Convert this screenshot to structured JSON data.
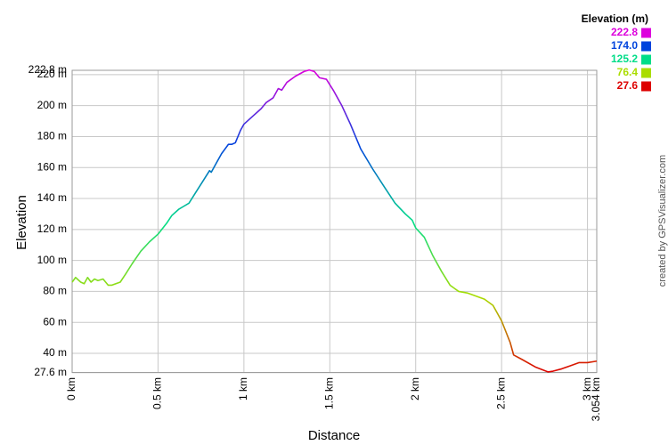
{
  "chart_data": {
    "type": "line",
    "x_label": "Distance",
    "y_label": "Elevation",
    "credit": "created by GPSVisualizer.com",
    "x": [
      0,
      0.02,
      0.05,
      0.07,
      0.09,
      0.11,
      0.13,
      0.15,
      0.18,
      0.21,
      0.23,
      0.28,
      0.31,
      0.35,
      0.4,
      0.45,
      0.5,
      0.55,
      0.58,
      0.62,
      0.65,
      0.68,
      0.72,
      0.76,
      0.8,
      0.81,
      0.84,
      0.87,
      0.91,
      0.93,
      0.95,
      0.98,
      1.0,
      1.05,
      1.1,
      1.13,
      1.17,
      1.2,
      1.22,
      1.25,
      1.3,
      1.35,
      1.38,
      1.41,
      1.44,
      1.48,
      1.52,
      1.57,
      1.62,
      1.68,
      1.75,
      1.82,
      1.88,
      1.94,
      1.98,
      2.0,
      2.05,
      2.1,
      2.15,
      2.2,
      2.25,
      2.3,
      2.35,
      2.4,
      2.45,
      2.5,
      2.55,
      2.57,
      2.62,
      2.7,
      2.77,
      2.8,
      2.85,
      2.9,
      2.95,
      3.0,
      3.054
    ],
    "values": [
      86,
      89,
      86,
      85,
      89,
      86,
      88,
      87,
      88,
      84,
      84,
      86,
      91,
      98,
      106,
      112,
      117,
      124,
      129,
      133,
      135,
      137,
      144,
      151,
      158,
      157,
      163,
      169,
      175,
      175,
      176,
      184,
      188,
      193,
      198,
      202,
      205,
      211,
      210,
      215,
      219,
      222,
      223,
      222,
      218,
      217,
      210,
      200,
      188,
      172,
      159,
      147,
      137,
      130,
      126,
      121,
      115,
      103,
      93,
      84,
      80,
      79,
      77,
      75,
      71,
      61,
      47,
      39,
      36,
      31,
      28,
      28.5,
      30,
      32,
      34,
      34,
      35
    ],
    "xlim": [
      0,
      3.054
    ],
    "xticks": [
      {
        "value": 0,
        "label": "0 km"
      },
      {
        "value": 0.5,
        "label": "0.5 km"
      },
      {
        "value": 1,
        "label": "1 km"
      },
      {
        "value": 1.5,
        "label": "1.5 km"
      },
      {
        "value": 2,
        "label": "2 km"
      },
      {
        "value": 2.5,
        "label": "2.5 km"
      },
      {
        "value": 3,
        "label": "3 km"
      },
      {
        "value": 3.054,
        "label": "3.054 km"
      }
    ],
    "ylim": [
      27.6,
      222.8
    ],
    "yticks": [
      {
        "value": 27.6,
        "label": "27.6 m"
      },
      {
        "value": 40,
        "label": "40 m"
      },
      {
        "value": 60,
        "label": "60 m"
      },
      {
        "value": 80,
        "label": "80 m"
      },
      {
        "value": 100,
        "label": "100 m"
      },
      {
        "value": 120,
        "label": "120 m"
      },
      {
        "value": 140,
        "label": "140 m"
      },
      {
        "value": 160,
        "label": "160 m"
      },
      {
        "value": 180,
        "label": "180 m"
      },
      {
        "value": 200,
        "label": "200 m"
      },
      {
        "value": 220,
        "label": "220 m"
      },
      {
        "value": 222.8,
        "label": "222.8 m"
      }
    ],
    "grid": true,
    "color_scale": {
      "title": "Elevation (m)",
      "values": [
        222.8,
        174.0,
        125.2,
        76.4,
        27.6
      ],
      "value_labels": [
        "222.8",
        "174.0",
        "125.2",
        "76.4",
        "27.6"
      ],
      "colors": [
        "#dd00dd",
        "#0044dd",
        "#00dd88",
        "#aadd00",
        "#dd0000"
      ]
    }
  }
}
